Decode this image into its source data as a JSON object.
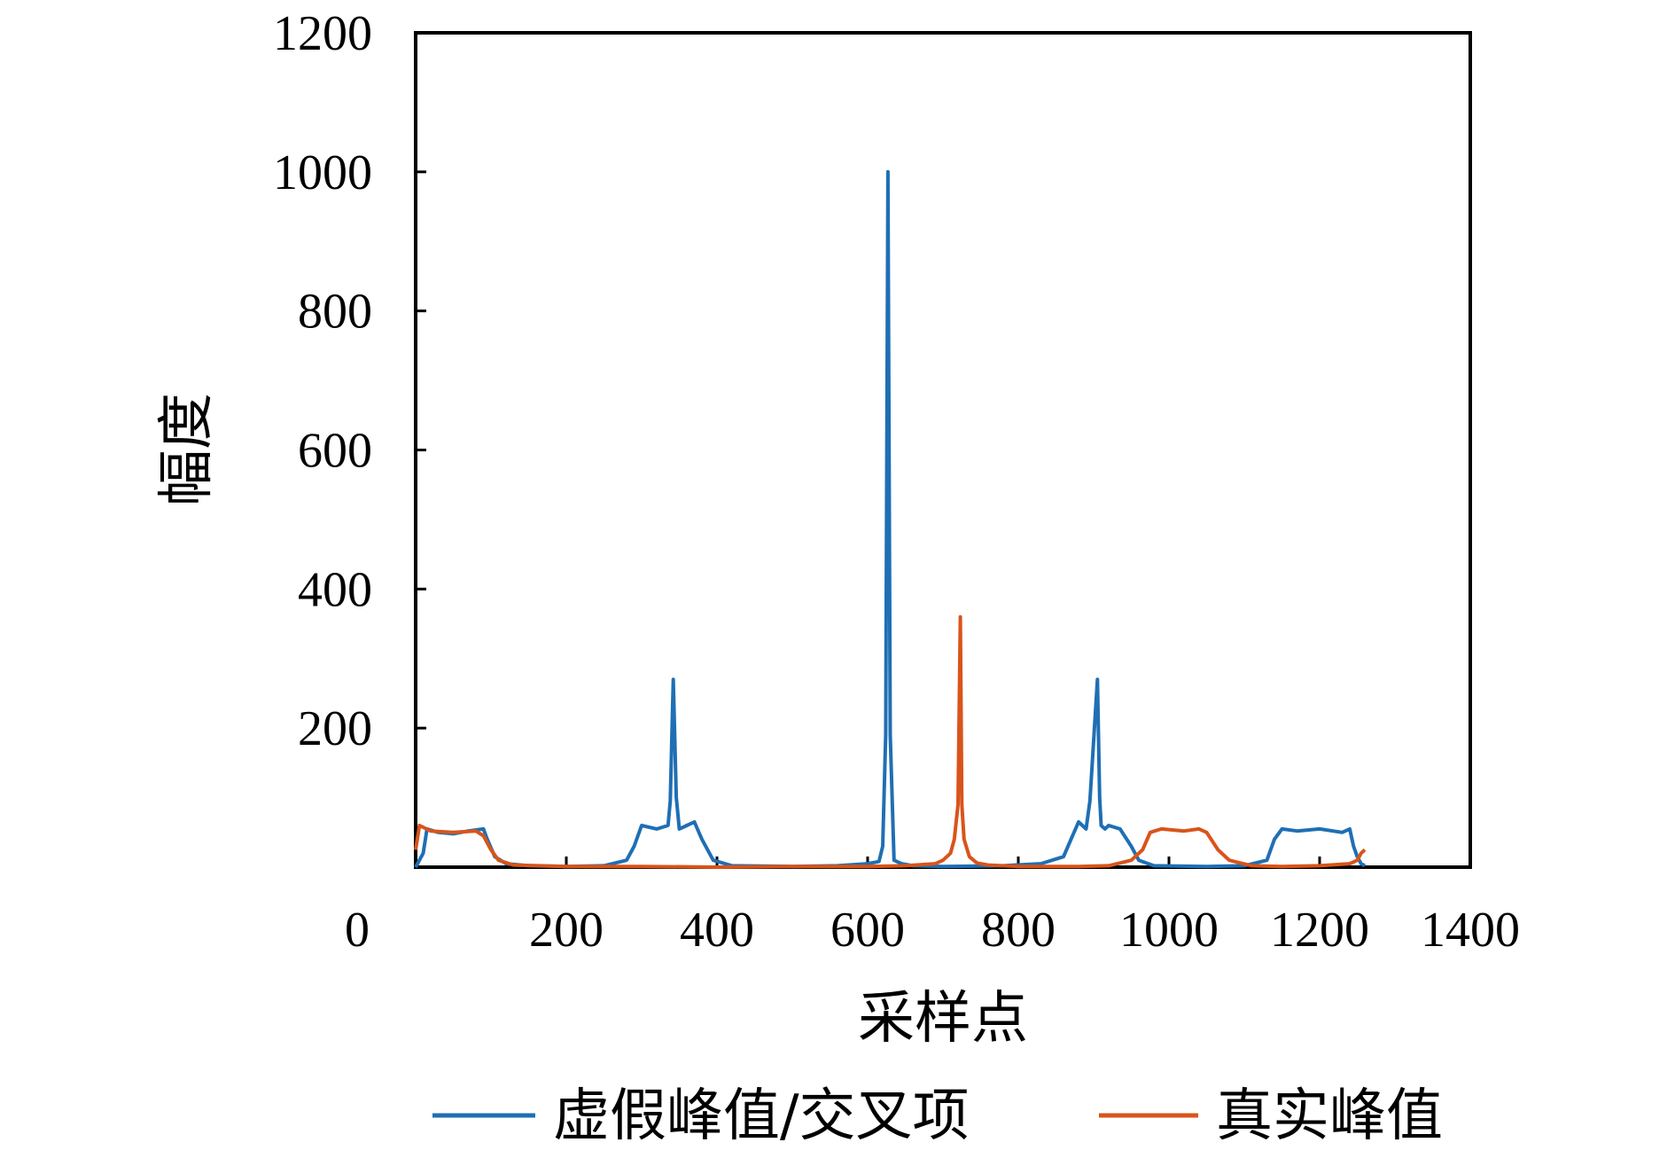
{
  "chart_data": {
    "type": "line",
    "title": "",
    "xlabel": "采样点",
    "ylabel": "幅度",
    "xlim": [
      0,
      1400
    ],
    "ylim": [
      0,
      1200
    ],
    "x_ticks": [
      0,
      200,
      400,
      600,
      800,
      1000,
      1200,
      1400
    ],
    "y_ticks": [
      200,
      400,
      600,
      800,
      1000,
      1200
    ],
    "x_tick_labels": [
      "0",
      "200",
      "400",
      "600",
      "800",
      "1000",
      "1200",
      "1400"
    ],
    "y_tick_labels": [
      "200",
      "400",
      "600",
      "800",
      "1000",
      "1200"
    ],
    "grid": false,
    "legend_position": "bottom",
    "series": [
      {
        "name": "虚假峰值/交叉项",
        "color": "#1f6fb4",
        "x": [
          0,
          10,
          15,
          30,
          50,
          70,
          90,
          95,
          105,
          120,
          150,
          200,
          250,
          280,
          290,
          300,
          320,
          335,
          338,
          342,
          346,
          350,
          360,
          370,
          380,
          395,
          420,
          500,
          560,
          600,
          615,
          620,
          624,
          627,
          630,
          635,
          645,
          660,
          700,
          780,
          830,
          860,
          870,
          880,
          890,
          895,
          905,
          908,
          910,
          915,
          920,
          935,
          950,
          960,
          980,
          1050,
          1100,
          1130,
          1140,
          1150,
          1170,
          1200,
          1230,
          1240,
          1245,
          1250,
          1255,
          1260
        ],
        "y": [
          0,
          20,
          55,
          50,
          48,
          52,
          55,
          40,
          15,
          5,
          2,
          1,
          2,
          10,
          30,
          60,
          55,
          60,
          95,
          270,
          100,
          55,
          60,
          65,
          40,
          10,
          2,
          1,
          2,
          5,
          8,
          30,
          190,
          1000,
          190,
          10,
          5,
          2,
          1,
          2,
          5,
          15,
          40,
          65,
          55,
          95,
          270,
          100,
          60,
          55,
          60,
          55,
          30,
          10,
          2,
          1,
          2,
          10,
          40,
          55,
          52,
          55,
          50,
          55,
          30,
          15,
          5,
          2
        ]
      },
      {
        "name": "真实峰值",
        "color": "#d9541a",
        "x": [
          0,
          5,
          20,
          50,
          80,
          90,
          100,
          110,
          130,
          200,
          300,
          400,
          500,
          600,
          650,
          690,
          700,
          710,
          715,
          720,
          723,
          725,
          728,
          735,
          745,
          760,
          800,
          880,
          920,
          950,
          965,
          975,
          990,
          1020,
          1040,
          1050,
          1065,
          1080,
          1110,
          1150,
          1200,
          1240,
          1250,
          1255,
          1260
        ],
        "y": [
          25,
          60,
          52,
          50,
          52,
          45,
          25,
          10,
          3,
          1,
          1,
          0,
          1,
          1,
          2,
          5,
          10,
          20,
          40,
          90,
          360,
          90,
          40,
          15,
          6,
          3,
          1,
          1,
          2,
          10,
          25,
          50,
          55,
          52,
          55,
          50,
          25,
          10,
          2,
          1,
          2,
          5,
          10,
          20,
          25
        ]
      }
    ]
  }
}
